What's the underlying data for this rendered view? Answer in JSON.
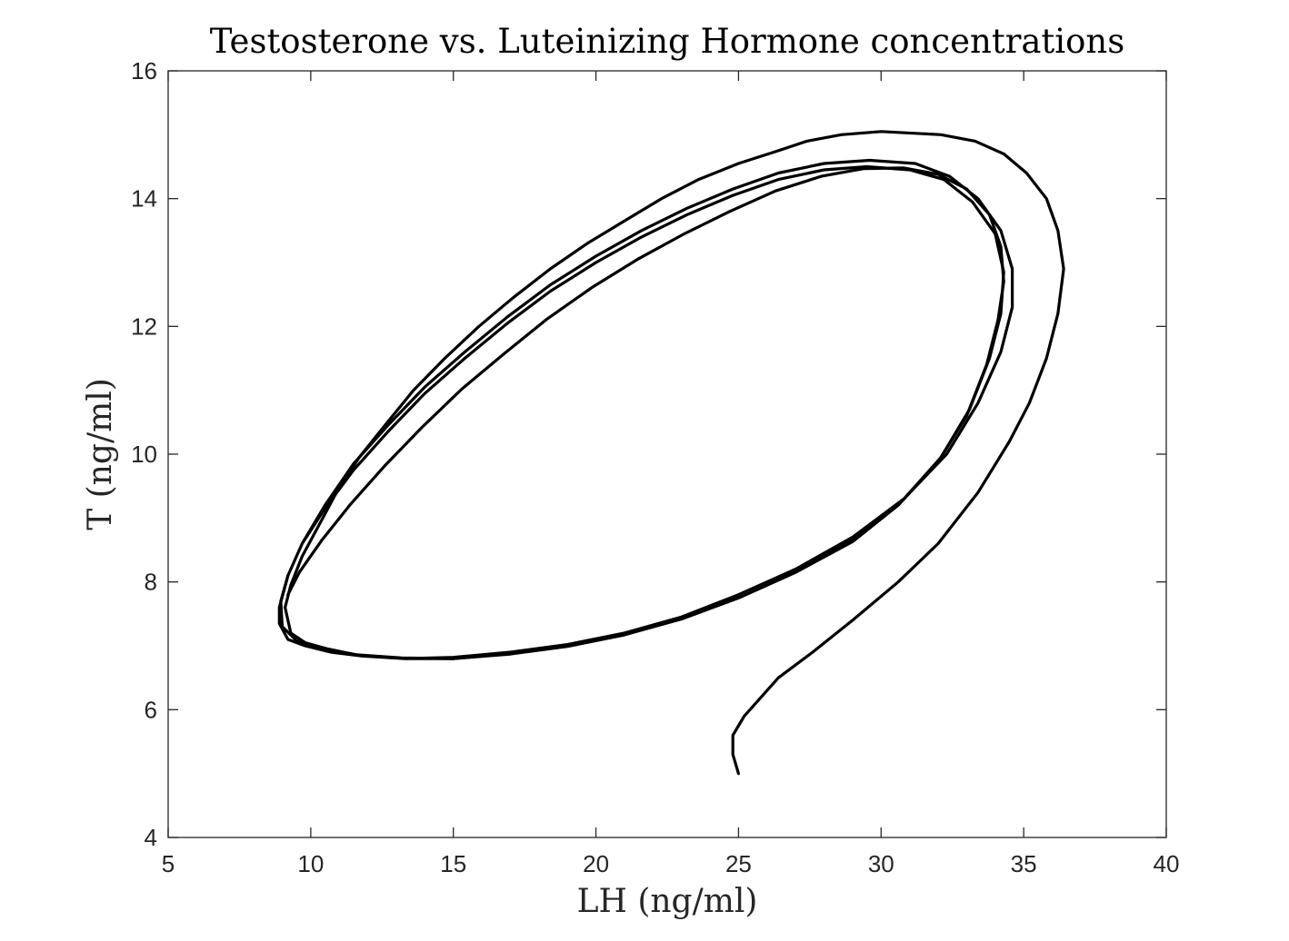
{
  "chart_data": {
    "type": "line",
    "title": "Testosterone vs. Luteinizing Hormone concentrations",
    "xlabel": "LH (ng/ml)",
    "ylabel": "T (ng/ml)",
    "xlim": [
      5,
      40
    ],
    "ylim": [
      4,
      16
    ],
    "xticks": [
      5,
      10,
      15,
      20,
      25,
      30,
      35,
      40
    ],
    "yticks": [
      4,
      6,
      8,
      10,
      12,
      14,
      16
    ],
    "grid": false,
    "legend": "none",
    "line_color": "#000000",
    "series": [
      {
        "x": [
          25.0,
          24.8,
          24.8,
          25.2,
          25.8,
          26.4,
          27.6,
          29.0,
          30.6,
          32.0,
          33.4,
          34.5,
          35.2,
          35.8,
          36.2,
          36.4,
          36.2,
          35.8,
          35.1,
          34.3,
          33.3,
          32.1,
          30.0,
          28.6,
          27.4,
          26.4,
          25.0,
          23.6,
          22.3,
          21.0,
          19.7,
          18.4,
          17.1,
          15.9,
          14.7,
          13.6,
          12.6,
          11.7,
          10.9,
          10.3,
          9.7,
          9.3,
          9.1
        ],
        "y": [
          5.0,
          5.3,
          5.6,
          5.9,
          6.2,
          6.5,
          6.9,
          7.4,
          8.0,
          8.6,
          9.4,
          10.2,
          10.8,
          11.5,
          12.2,
          12.9,
          13.5,
          14.0,
          14.4,
          14.7,
          14.9,
          15.0,
          15.05,
          15.0,
          14.9,
          14.75,
          14.55,
          14.3,
          14.0,
          13.65,
          13.3,
          12.9,
          12.45,
          12.0,
          11.5,
          11.0,
          10.45,
          9.95,
          9.4,
          8.9,
          8.4,
          7.95,
          7.6
        ]
      },
      {
        "x": [
          9.1,
          9.3,
          9.8,
          10.6,
          11.7,
          13.3,
          15.0,
          17.0,
          19.0,
          21.0,
          23.0,
          25.0,
          27.0,
          29.0,
          30.8,
          32.3,
          33.4,
          34.2,
          34.6,
          34.6,
          34.2,
          33.4,
          32.4,
          31.2,
          29.6,
          28.0,
          26.4,
          24.8,
          23.2,
          21.6,
          20.0,
          18.4,
          16.9,
          15.4,
          14.0,
          12.7,
          11.5,
          10.5,
          9.7,
          9.2,
          8.9,
          8.9,
          9.2,
          9.8,
          10.7,
          11.8,
          13.3,
          15.0,
          17.0,
          19.0,
          21.0,
          23.0,
          25.0,
          27.0,
          29.0,
          30.7,
          32.1,
          33.1,
          33.8,
          34.2,
          34.3,
          34.0,
          33.2,
          32.2,
          31.0,
          29.5,
          28.0,
          26.4,
          24.8,
          23.2,
          21.6,
          20.0,
          18.4,
          16.9,
          15.4,
          14.0,
          12.7,
          11.5,
          10.5,
          9.7,
          9.2
        ],
        "y": [
          7.6,
          7.2,
          7.05,
          6.95,
          6.85,
          6.8,
          6.82,
          6.9,
          7.02,
          7.2,
          7.45,
          7.8,
          8.2,
          8.7,
          9.3,
          10.0,
          10.8,
          11.6,
          12.3,
          12.9,
          13.5,
          14.0,
          14.35,
          14.55,
          14.6,
          14.55,
          14.4,
          14.15,
          13.85,
          13.5,
          13.1,
          12.65,
          12.15,
          11.6,
          11.05,
          10.45,
          9.85,
          9.2,
          8.6,
          8.1,
          7.6,
          7.35,
          7.1,
          7.0,
          6.9,
          6.84,
          6.8,
          6.8,
          6.88,
          7.0,
          7.18,
          7.42,
          7.75,
          8.15,
          8.65,
          9.25,
          9.95,
          10.7,
          11.5,
          12.2,
          12.85,
          13.45,
          13.95,
          14.3,
          14.45,
          14.5,
          14.45,
          14.3,
          14.05,
          13.75,
          13.4,
          13.0,
          12.55,
          12.05,
          11.5,
          10.95,
          10.35,
          9.75,
          9.15,
          8.6,
          8.1
        ]
      },
      {
        "x": [
          9.2,
          8.95,
          9.0,
          9.5,
          10.4,
          11.6,
          13.2,
          15.0,
          17.0,
          19.0,
          21.0,
          23.0,
          25.0,
          27.0,
          29.0,
          30.6,
          32.0,
          33.0,
          33.7,
          34.1,
          34.3,
          34.2,
          33.8,
          33.0,
          32.0,
          30.8,
          29.4,
          27.9,
          26.3,
          24.7,
          23.1,
          21.5,
          19.9,
          18.3,
          16.8,
          15.3,
          13.9,
          12.6,
          11.4,
          10.4,
          9.6,
          9.2
        ],
        "y": [
          8.1,
          7.7,
          7.3,
          7.08,
          6.95,
          6.86,
          6.81,
          6.8,
          6.87,
          6.99,
          7.17,
          7.42,
          7.75,
          8.15,
          8.63,
          9.2,
          9.88,
          10.6,
          11.4,
          12.1,
          12.7,
          13.25,
          13.75,
          14.15,
          14.38,
          14.48,
          14.47,
          14.35,
          14.12,
          13.8,
          13.45,
          13.06,
          12.62,
          12.12,
          11.58,
          11.02,
          10.42,
          9.82,
          9.22,
          8.66,
          8.15,
          7.8
        ]
      }
    ]
  }
}
